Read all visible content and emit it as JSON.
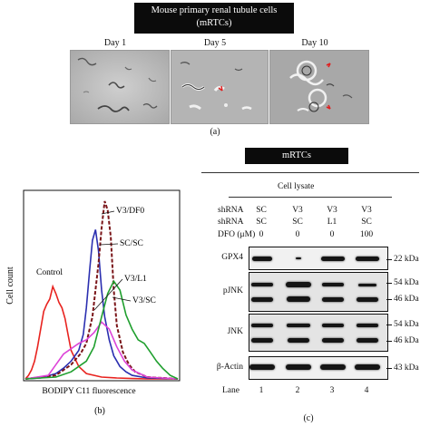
{
  "figure_a": {
    "title_line1": "Mouse primary renal tubule cells",
    "title_line2": "(mRTCs)",
    "days": [
      "Day 1",
      "Day 5",
      "Day 10"
    ],
    "panel_label": "(a)"
  },
  "figure_b": {
    "panel_label": "(b)",
    "chart_data": {
      "type": "line",
      "title": "",
      "xlabel": "BODIPY C11 fluorescence",
      "ylabel": "Cell count",
      "grid": false,
      "legend_placement": "direct labels on curves",
      "series": [
        {
          "name": "Control",
          "color": "#e8231f",
          "style": "solid",
          "x": [
            0,
            2,
            4,
            6,
            8,
            10,
            12,
            14,
            16,
            18,
            20,
            22,
            24,
            26,
            28,
            30,
            35,
            40,
            50,
            60,
            70,
            80,
            90,
            100
          ],
          "y": [
            0,
            2,
            5,
            10,
            18,
            28,
            38,
            42,
            45,
            52,
            48,
            43,
            40,
            34,
            25,
            16,
            7,
            3,
            1,
            0.5,
            0.2,
            0,
            0,
            0
          ]
        },
        {
          "name": "SC/SC",
          "color": "#2b2fb0",
          "style": "solid",
          "x": [
            0,
            10,
            20,
            25,
            30,
            35,
            38,
            40,
            42,
            44,
            46,
            48,
            50,
            52,
            55,
            58,
            62,
            66,
            70,
            80,
            100
          ],
          "y": [
            0,
            0.5,
            3,
            6,
            10,
            16,
            25,
            40,
            60,
            78,
            84,
            72,
            50,
            35,
            22,
            13,
            7,
            4,
            2,
            0.5,
            0
          ]
        },
        {
          "name": "V3/DF0",
          "color": "#7a1418",
          "style": "dashed",
          "x": [
            0,
            20,
            30,
            36,
            40,
            44,
            48,
            50,
            52,
            54,
            56,
            58,
            60,
            64,
            68,
            72,
            80,
            100
          ],
          "y": [
            0,
            2,
            8,
            14,
            20,
            35,
            65,
            85,
            100,
            95,
            80,
            50,
            30,
            15,
            8,
            4,
            1,
            0
          ]
        },
        {
          "name": "V3/L1",
          "color": "#dd44d8",
          "style": "solid",
          "x": [
            0,
            15,
            20,
            25,
            30,
            35,
            40,
            45,
            50,
            55,
            60,
            65,
            70,
            75,
            80,
            100
          ],
          "y": [
            0,
            2,
            8,
            14,
            17,
            20,
            22,
            26,
            32,
            28,
            18,
            10,
            5,
            3,
            1,
            0
          ]
        },
        {
          "name": "V3/SC",
          "color": "#1f9f2e",
          "style": "solid",
          "x": [
            0,
            20,
            30,
            40,
            45,
            50,
            54,
            58,
            62,
            66,
            70,
            74,
            78,
            82,
            86,
            90,
            95,
            100
          ],
          "y": [
            0,
            1,
            4,
            10,
            18,
            35,
            48,
            55,
            50,
            36,
            28,
            22,
            20,
            15,
            10,
            6,
            2,
            0
          ]
        }
      ]
    }
  },
  "figure_c": {
    "panel_label": "(c)",
    "header": "mRTCs",
    "subheader": "Cell lysate",
    "row_labels": [
      "shRNA",
      "shRNA",
      "DFO (μM)"
    ],
    "columns": [
      {
        "row1": "SC",
        "row2": "SC",
        "dfo": "0",
        "lane": "1"
      },
      {
        "row1": "V3",
        "row2": "SC",
        "dfo": "0",
        "lane": "2"
      },
      {
        "row1": "V3",
        "row2": "L1",
        "dfo": "0",
        "lane": "3"
      },
      {
        "row1": "V3",
        "row2": "SC",
        "dfo": "100",
        "lane": "4"
      }
    ],
    "blots": [
      {
        "name": "GPX4",
        "kda": [
          "22 kDa"
        ]
      },
      {
        "name": "pJNK",
        "kda": [
          "54 kDa",
          "46 kDa"
        ]
      },
      {
        "name": "JNK",
        "kda": [
          "54 kDa",
          "46 kDa"
        ]
      },
      {
        "name": "β-Actin",
        "kda": [
          "43 kDa"
        ]
      }
    ],
    "lane_label": "Lane"
  }
}
